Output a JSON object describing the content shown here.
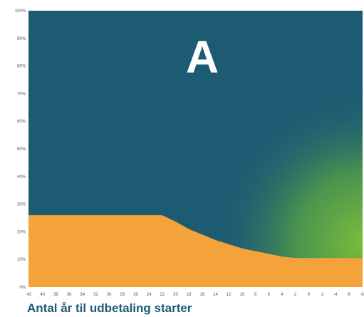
{
  "chart_data": {
    "type": "area",
    "panel_label": "A",
    "xlabel": "Antal år til udbetaling starter",
    "ylabel": "",
    "ylim": [
      0,
      100
    ],
    "y_ticks": [
      "0%",
      "10%",
      "20%",
      "30%",
      "40%",
      "50%",
      "60%",
      "70%",
      "80%",
      "90%",
      "100%"
    ],
    "x_ticks": [
      "42",
      "40",
      "38",
      "36",
      "34",
      "32",
      "30",
      "28",
      "26",
      "24",
      "22",
      "20",
      "18",
      "16",
      "14",
      "12",
      "10",
      "8",
      "6",
      "4",
      "2",
      "0",
      "-2",
      "-4",
      "-6",
      "-8"
    ],
    "grid": false,
    "series": [
      {
        "color": "#f4a33a",
        "x": [
          42,
          24,
          22,
          20,
          18,
          16,
          14,
          12,
          10,
          8,
          6,
          4,
          2,
          0,
          -8
        ],
        "values": [
          26,
          26,
          26,
          23.7,
          21,
          19,
          17,
          15.5,
          14,
          13,
          12,
          11,
          10.5,
          10.5,
          10.5
        ]
      },
      {
        "color": "#1d5b72",
        "x": [
          42,
          -8
        ],
        "values": [
          100,
          100
        ]
      }
    ],
    "colors": {
      "teal": "#1d5b72",
      "orange": "#f4a33a",
      "green": "#7dbd3a",
      "label_blue": "#1f5a7a"
    }
  }
}
